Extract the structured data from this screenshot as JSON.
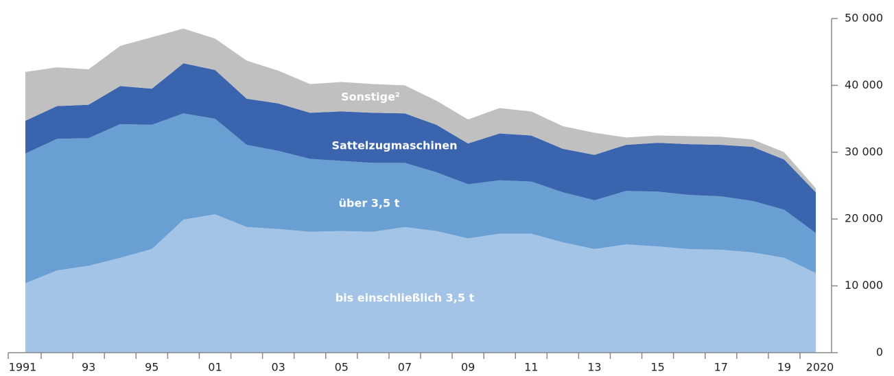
{
  "chart_data": {
    "type": "stacked-area",
    "categories": [
      "1991",
      null,
      "93",
      null,
      "95",
      null,
      "01",
      null,
      "03",
      null,
      "05",
      null,
      "07",
      null,
      "09",
      null,
      "11",
      null,
      "13",
      null,
      "15",
      null,
      "17",
      null,
      "19",
      "2020"
    ],
    "series": [
      {
        "name": "bis einschließlich 3,5 t",
        "color": "#a3c4e6",
        "values": [
          10400,
          12300,
          13000,
          14200,
          15500,
          19900,
          20700,
          18800,
          18500,
          18100,
          18200,
          18100,
          18800,
          18200,
          17100,
          17800,
          17800,
          16500,
          15500,
          16200,
          15900,
          15500,
          15400,
          15000,
          14200,
          11900
        ]
      },
      {
        "name": "über 3,5 t",
        "color": "#6a9fd4",
        "values": [
          19400,
          19700,
          19100,
          20000,
          18600,
          15900,
          14300,
          12300,
          11700,
          10900,
          10500,
          10300,
          9600,
          8800,
          8100,
          8000,
          7800,
          7500,
          7300,
          8000,
          8200,
          8100,
          8000,
          7700,
          7200,
          6000
        ]
      },
      {
        "name": "Sattelzugmaschinen",
        "color": "#3a64ae",
        "values": [
          4900,
          4900,
          5000,
          5700,
          5400,
          7500,
          7300,
          6900,
          7100,
          6900,
          7400,
          7500,
          7400,
          7100,
          6100,
          7000,
          6900,
          6500,
          6800,
          6900,
          7300,
          7600,
          7700,
          8100,
          7500,
          6100
        ]
      },
      {
        "name": "Sonstige²",
        "color": "#c0c0c0",
        "values": [
          7300,
          5800,
          5300,
          6000,
          7700,
          5200,
          4700,
          5700,
          4900,
          4300,
          4400,
          4300,
          4200,
          3600,
          3600,
          3800,
          3600,
          3400,
          3300,
          1100,
          1100,
          1200,
          1200,
          1100,
          1100,
          600
        ]
      }
    ],
    "ylim": [
      0,
      50000
    ],
    "yticks": [
      0,
      {
        "value": 10000,
        "label": "10 000"
      },
      {
        "value": 20000,
        "label": "20 000"
      },
      {
        "value": 30000,
        "label": "30 000"
      },
      {
        "value": 40000,
        "label": "40 000"
      },
      {
        "value": 50000,
        "label": "50 000"
      }
    ]
  }
}
